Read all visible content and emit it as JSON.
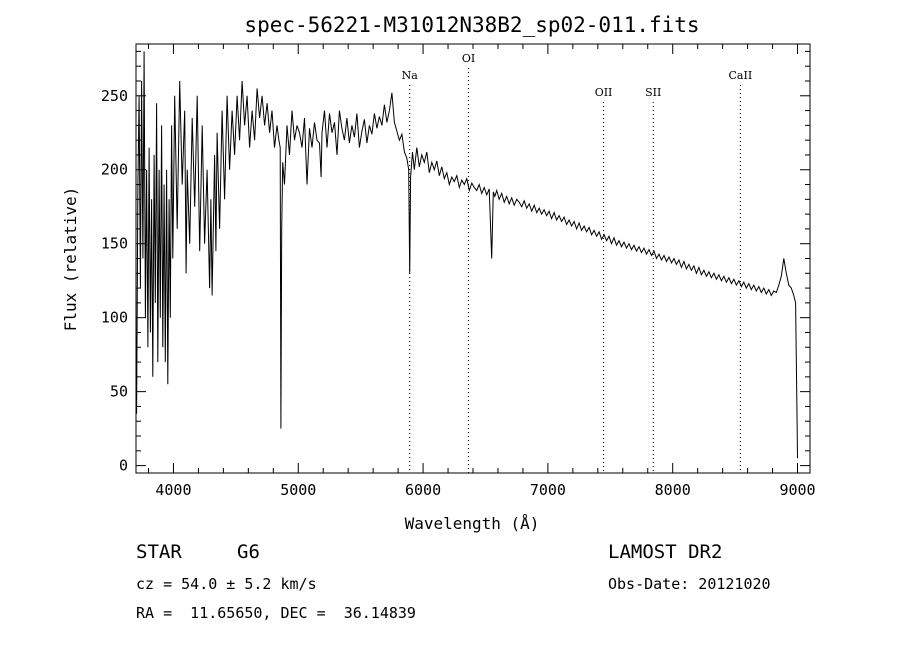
{
  "chart_data": {
    "type": "line",
    "title": "spec-56221-M31012N38B2_sp02-011.fits",
    "xlabel": "Wavelength (Å)",
    "ylabel": "Flux (relative)",
    "xlim": [
      3700,
      9100
    ],
    "ylim": [
      -5,
      285
    ],
    "xticks": [
      4000,
      5000,
      6000,
      7000,
      8000,
      9000
    ],
    "yticks": [
      0,
      50,
      100,
      150,
      200,
      250
    ],
    "xtick_labels": [
      "4000",
      "5000",
      "6000",
      "7000",
      "8000",
      "9000"
    ],
    "ytick_labels": [
      "0",
      "50",
      "100",
      "150",
      "200",
      "250"
    ],
    "grid": false,
    "line_color": "#000000",
    "annotations": [
      {
        "label": "Na",
        "x": 5893
      },
      {
        "label": "OI",
        "x": 6364
      },
      {
        "label": "OII",
        "x": 7446
      },
      {
        "label": "SII",
        "x": 7844
      },
      {
        "label": "CaII",
        "x": 8542
      }
    ],
    "series": [
      {
        "x": [
          3705,
          3715,
          3725,
          3735,
          3745,
          3755,
          3765,
          3775,
          3785,
          3795,
          3805,
          3815,
          3825,
          3835,
          3845,
          3855,
          3865,
          3875,
          3885,
          3895,
          3905,
          3915,
          3925,
          3935,
          3945,
          3955,
          3965,
          3975,
          3985,
          3995,
          4010,
          4030,
          4050,
          4070,
          4090,
          4101,
          4110,
          4130,
          4150,
          4170,
          4190,
          4210,
          4230,
          4250,
          4270,
          4290,
          4300,
          4310,
          4330,
          4340,
          4350,
          4370,
          4390,
          4410,
          4430,
          4450,
          4470,
          4490,
          4510,
          4530,
          4550,
          4570,
          4590,
          4610,
          4630,
          4650,
          4670,
          4690,
          4710,
          4730,
          4750,
          4770,
          4790,
          4810,
          4830,
          4845,
          4855,
          4861,
          4867,
          4875,
          4890,
          4910,
          4930,
          4950,
          4970,
          4990,
          5010,
          5030,
          5050,
          5070,
          5090,
          5110,
          5130,
          5150,
          5170,
          5183,
          5190,
          5210,
          5230,
          5250,
          5270,
          5290,
          5310,
          5330,
          5350,
          5370,
          5390,
          5410,
          5430,
          5450,
          5470,
          5490,
          5510,
          5530,
          5550,
          5570,
          5590,
          5610,
          5630,
          5650,
          5670,
          5690,
          5710,
          5730,
          5750,
          5770,
          5790,
          5810,
          5830,
          5850,
          5870,
          5885,
          5893,
          5900,
          5915,
          5930,
          5950,
          5970,
          5990,
          6010,
          6030,
          6050,
          6070,
          6090,
          6110,
          6130,
          6150,
          6170,
          6190,
          6210,
          6230,
          6250,
          6270,
          6290,
          6310,
          6330,
          6350,
          6370,
          6390,
          6410,
          6430,
          6450,
          6470,
          6490,
          6510,
          6530,
          6550,
          6563,
          6575,
          6590,
          6610,
          6630,
          6650,
          6670,
          6690,
          6710,
          6730,
          6750,
          6770,
          6790,
          6810,
          6830,
          6850,
          6870,
          6890,
          6910,
          6930,
          6950,
          6970,
          6990,
          7010,
          7030,
          7050,
          7070,
          7090,
          7110,
          7130,
          7150,
          7170,
          7190,
          7210,
          7230,
          7250,
          7270,
          7290,
          7310,
          7330,
          7350,
          7370,
          7390,
          7410,
          7430,
          7450,
          7470,
          7490,
          7510,
          7530,
          7550,
          7570,
          7590,
          7610,
          7630,
          7650,
          7670,
          7690,
          7710,
          7730,
          7750,
          7770,
          7790,
          7810,
          7830,
          7850,
          7870,
          7890,
          7910,
          7930,
          7950,
          7970,
          7990,
          8010,
          8030,
          8050,
          8070,
          8090,
          8110,
          8130,
          8150,
          8170,
          8190,
          8210,
          8230,
          8250,
          8270,
          8290,
          8310,
          8330,
          8350,
          8370,
          8390,
          8410,
          8430,
          8450,
          8470,
          8490,
          8510,
          8530,
          8550,
          8570,
          8590,
          8610,
          8630,
          8650,
          8670,
          8690,
          8710,
          8730,
          8750,
          8770,
          8790,
          8810,
          8830,
          8850,
          8870,
          8890,
          8910,
          8930,
          8950,
          8970,
          8985,
          8995,
          9000
        ],
        "y": [
          35,
          190,
          250,
          120,
          260,
          140,
          280,
          100,
          200,
          80,
          215,
          90,
          180,
          60,
          210,
          110,
          245,
          70,
          200,
          100,
          230,
          80,
          190,
          70,
          200,
          55,
          180,
          100,
          230,
          140,
          250,
          160,
          260,
          190,
          240,
          130,
          200,
          150,
          235,
          175,
          250,
          145,
          230,
          150,
          200,
          120,
          180,
          115,
          210,
          145,
          225,
          160,
          240,
          180,
          250,
          200,
          240,
          210,
          250,
          220,
          260,
          230,
          250,
          215,
          240,
          220,
          255,
          235,
          250,
          230,
          245,
          225,
          240,
          215,
          230,
          220,
          215,
          25,
          160,
          205,
          190,
          230,
          210,
          240,
          220,
          230,
          225,
          215,
          235,
          190,
          228,
          215,
          232,
          220,
          218,
          195,
          225,
          240,
          215,
          238,
          225,
          232,
          210,
          240,
          228,
          220,
          235,
          218,
          230,
          222,
          238,
          215,
          226,
          234,
          218,
          230,
          224,
          238,
          228,
          236,
          230,
          244,
          232,
          240,
          252,
          232,
          226,
          220,
          224,
          212,
          208,
          200,
          130,
          195,
          212,
          200,
          215,
          202,
          210,
          205,
          212,
          198,
          205,
          200,
          206,
          196,
          202,
          194,
          198,
          190,
          195,
          192,
          196,
          188,
          193,
          190,
          194,
          186,
          191,
          188,
          186,
          190,
          184,
          188,
          183,
          187,
          140,
          185,
          182,
          186,
          180,
          184,
          178,
          182,
          177,
          181,
          176,
          180,
          178,
          175,
          179,
          174,
          177,
          172,
          176,
          171,
          174,
          170,
          173,
          169,
          172,
          167,
          171,
          166,
          169,
          165,
          168,
          163,
          166,
          162,
          165,
          160,
          164,
          159,
          162,
          158,
          161,
          156,
          159,
          155,
          158,
          153,
          156,
          152,
          155,
          150,
          154,
          149,
          152,
          148,
          151,
          147,
          150,
          146,
          149,
          145,
          148,
          144,
          147,
          143,
          146,
          142,
          145,
          140,
          143,
          139,
          142,
          138,
          141,
          137,
          140,
          136,
          139,
          134,
          138,
          133,
          136,
          132,
          135,
          130,
          134,
          129,
          132,
          128,
          131,
          127,
          130,
          126,
          129,
          125,
          128,
          124,
          127,
          123,
          126,
          122,
          125,
          121,
          124,
          120,
          123,
          119,
          122,
          118,
          121,
          117,
          120,
          116,
          119,
          115,
          118,
          117,
          122,
          128,
          140,
          130,
          122,
          120,
          115,
          110,
          40,
          5
        ]
      }
    ]
  },
  "info": {
    "object_class": "STAR",
    "subclass": "G6",
    "survey": "LAMOST DR2",
    "redshift": "cz = 54.0 ± 5.2 km/s",
    "obs_date": "Obs-Date: 20121020",
    "coords": "RA =  11.65650, DEC =  36.14839"
  }
}
